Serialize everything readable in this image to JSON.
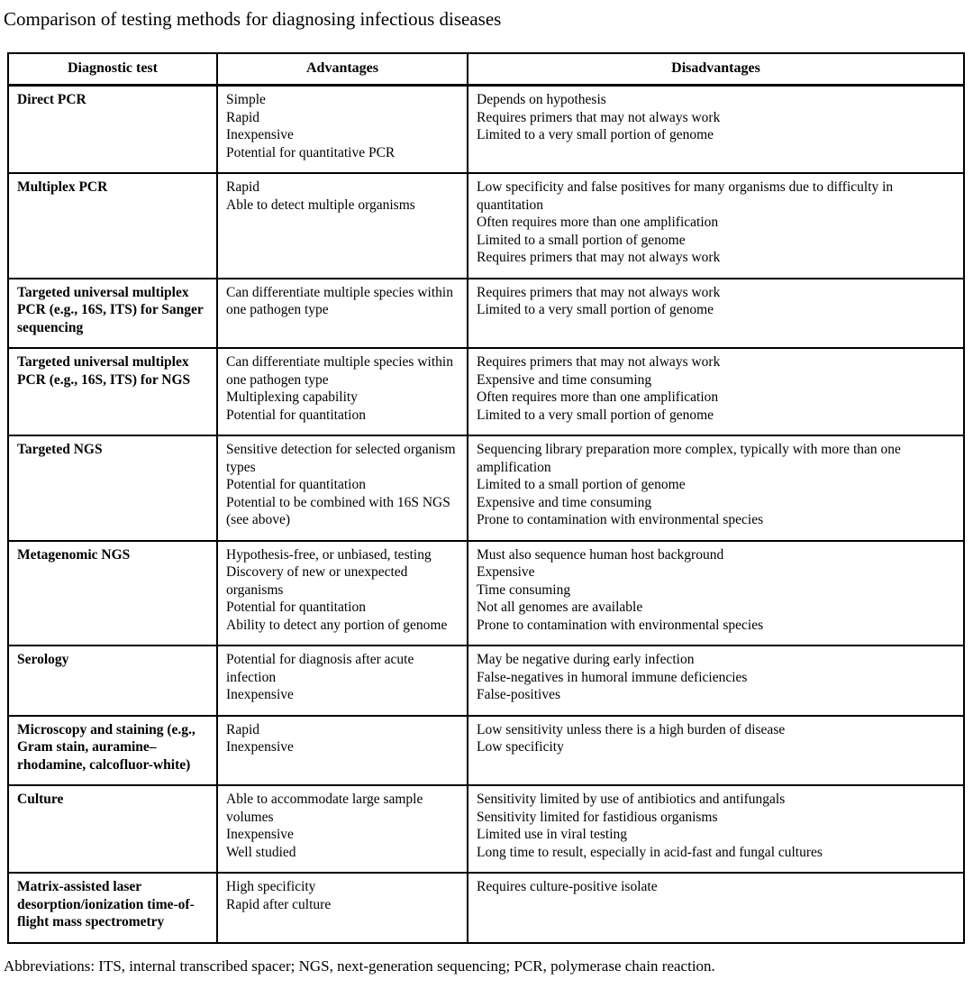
{
  "page": {
    "title": "Comparison of testing methods for diagnosing infectious diseases",
    "footnote": "Abbreviations: ITS, internal transcribed spacer; NGS, next-generation sequencing; PCR, polymerase chain reaction."
  },
  "colors": {
    "text": "#000000",
    "border": "#000000",
    "background": "#ffffff"
  },
  "table": {
    "columns": [
      "Diagnostic test",
      "Advantages",
      "Disadvantages"
    ],
    "rows": [
      {
        "test": "Direct PCR",
        "advantages": [
          "Simple",
          "Rapid",
          "Inexpensive",
          "Potential for quantitative PCR"
        ],
        "disadvantages": [
          "Depends on hypothesis",
          "Requires primers that may not always work",
          "Limited to a very small portion of genome"
        ]
      },
      {
        "test": "Multiplex PCR",
        "advantages": [
          "Rapid",
          "Able to detect multiple organisms"
        ],
        "disadvantages": [
          "Low specificity and false positives for many organisms due to difficulty in quantitation",
          "Often requires more than one amplification",
          "Limited to a small portion of genome",
          "Requires primers that may not always work"
        ]
      },
      {
        "test": "Targeted universal multiplex PCR (e.g., 16S, ITS) for Sanger sequencing",
        "advantages": [
          "Can differentiate multiple species within one pathogen type"
        ],
        "disadvantages": [
          "Requires primers that may not always work",
          "Limited to a very small portion of genome"
        ]
      },
      {
        "test": "Targeted universal multiplex PCR (e.g., 16S, ITS) for NGS",
        "advantages": [
          "Can differentiate multiple species within one pathogen type",
          "Multiplexing capability",
          "Potential for quantitation"
        ],
        "disadvantages": [
          "Requires primers that may not always work",
          "Expensive and time consuming",
          "Often requires more than one amplification",
          "Limited to a very small portion of genome"
        ]
      },
      {
        "test": "Targeted NGS",
        "advantages": [
          "Sensitive detection for selected organism types",
          "Potential for quantitation",
          "Potential to be combined with 16S NGS (see above)"
        ],
        "disadvantages": [
          "Sequencing library preparation more complex, typically with more than one amplification",
          "Limited to a small portion of genome",
          "Expensive and time consuming",
          "Prone to contamination with environmental species"
        ]
      },
      {
        "test": "Metagenomic NGS",
        "advantages": [
          "Hypothesis-free, or unbiased, testing",
          "Discovery of new or unexpected organisms",
          "Potential for quantitation",
          "Ability to detect any portion of genome"
        ],
        "disadvantages": [
          "Must also sequence human host background",
          "Expensive",
          "Time consuming",
          "Not all genomes are available",
          "Prone to contamination with environmental species"
        ]
      },
      {
        "test": "Serology",
        "advantages": [
          "Potential for diagnosis after acute infection",
          "Inexpensive"
        ],
        "disadvantages": [
          "May be negative during early infection",
          "False-negatives in humoral immune deficiencies",
          "False-positives"
        ]
      },
      {
        "test": "Microscopy and staining (e.g., Gram stain, auramine–rhodamine, calcofluor-white)",
        "advantages": [
          "Rapid",
          "Inexpensive"
        ],
        "disadvantages": [
          "Low sensitivity unless there is a high burden of disease",
          "Low specificity"
        ]
      },
      {
        "test": "Culture",
        "advantages": [
          "Able to accommodate large sample volumes",
          "Inexpensive",
          "Well studied"
        ],
        "disadvantages": [
          "Sensitivity limited by use of antibiotics and antifungals",
          "Sensitivity limited for fastidious organisms",
          "Limited use in viral testing",
          "Long time to result, especially in acid-fast and fungal cultures"
        ]
      },
      {
        "test": "Matrix-assisted laser desorption/ionization time-of-flight mass spectrometry",
        "advantages": [
          "High specificity",
          "Rapid after culture"
        ],
        "disadvantages": [
          "Requires culture-positive isolate"
        ]
      }
    ]
  }
}
